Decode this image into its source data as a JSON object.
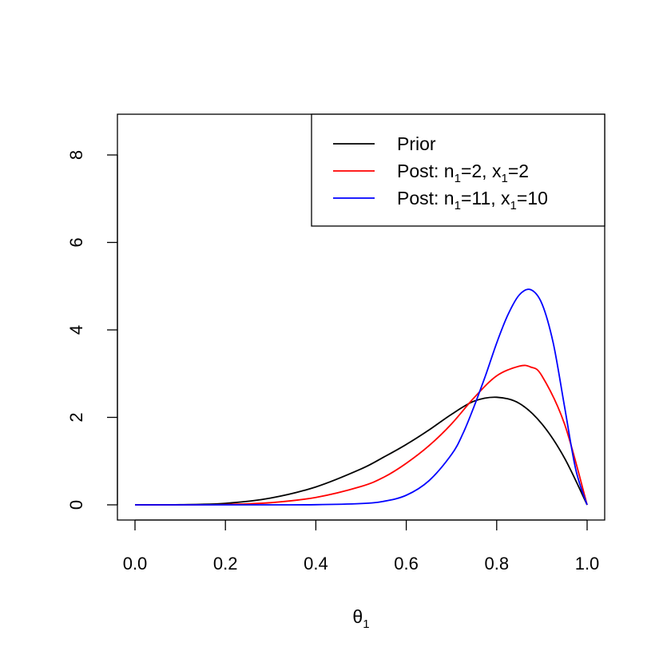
{
  "chart_data": {
    "type": "line",
    "title": "",
    "xlabel": "θ",
    "xlabel_subscript": "1",
    "ylabel": "",
    "xlim": [
      0,
      1
    ],
    "ylim": [
      0,
      8
    ],
    "xticks": [
      "0.0",
      "0.2",
      "0.4",
      "0.6",
      "0.8",
      "1.0"
    ],
    "yticks": [
      "0",
      "2",
      "4",
      "6",
      "8"
    ],
    "grid": false,
    "legend_position": "top-right",
    "series": [
      {
        "name": "Prior",
        "legend": [
          {
            "t": "Prior"
          }
        ],
        "color": "#000000",
        "x": [
          0.0,
          0.1,
          0.2,
          0.3,
          0.4,
          0.5,
          0.55,
          0.6,
          0.65,
          0.7,
          0.75,
          0.8,
          0.85,
          0.9,
          0.95,
          1.0
        ],
        "y": [
          0.0,
          0.003,
          0.035,
          0.155,
          0.41,
          0.82,
          1.09,
          1.38,
          1.71,
          2.07,
          2.37,
          2.46,
          2.32,
          1.85,
          1.07,
          0.0
        ]
      },
      {
        "name": "Post: n1=2, x1=2",
        "legend": [
          {
            "t": "Post: n"
          },
          {
            "t": "1",
            "sub": true
          },
          {
            "t": "=2, x"
          },
          {
            "t": "1",
            "sub": true
          },
          {
            "t": "=2"
          }
        ],
        "color": "#ff0000",
        "x": [
          0.0,
          0.1,
          0.2,
          0.3,
          0.4,
          0.5,
          0.55,
          0.6,
          0.65,
          0.7,
          0.75,
          0.8,
          0.85,
          0.875,
          0.9,
          0.95,
          1.0
        ],
        "y": [
          0.0,
          0.0,
          0.008,
          0.05,
          0.17,
          0.42,
          0.63,
          0.95,
          1.35,
          1.85,
          2.45,
          2.95,
          3.17,
          3.15,
          2.95,
          1.85,
          0.0
        ]
      },
      {
        "name": "Post: n1=11, x1=10",
        "legend": [
          {
            "t": "Post: n"
          },
          {
            "t": "1",
            "sub": true
          },
          {
            "t": "=11, x"
          },
          {
            "t": "1",
            "sub": true
          },
          {
            "t": "=10"
          }
        ],
        "color": "#0000ff",
        "x": [
          0.0,
          0.3,
          0.4,
          0.5,
          0.55,
          0.6,
          0.65,
          0.7,
          0.725,
          0.75,
          0.775,
          0.8,
          0.825,
          0.85,
          0.875,
          0.9,
          0.925,
          0.95,
          0.975,
          1.0
        ],
        "y": [
          0.0,
          0.0,
          0.003,
          0.03,
          0.08,
          0.22,
          0.55,
          1.15,
          1.62,
          2.25,
          2.95,
          3.7,
          4.35,
          4.8,
          4.92,
          4.6,
          3.7,
          2.25,
          0.8,
          0.0
        ]
      }
    ]
  }
}
